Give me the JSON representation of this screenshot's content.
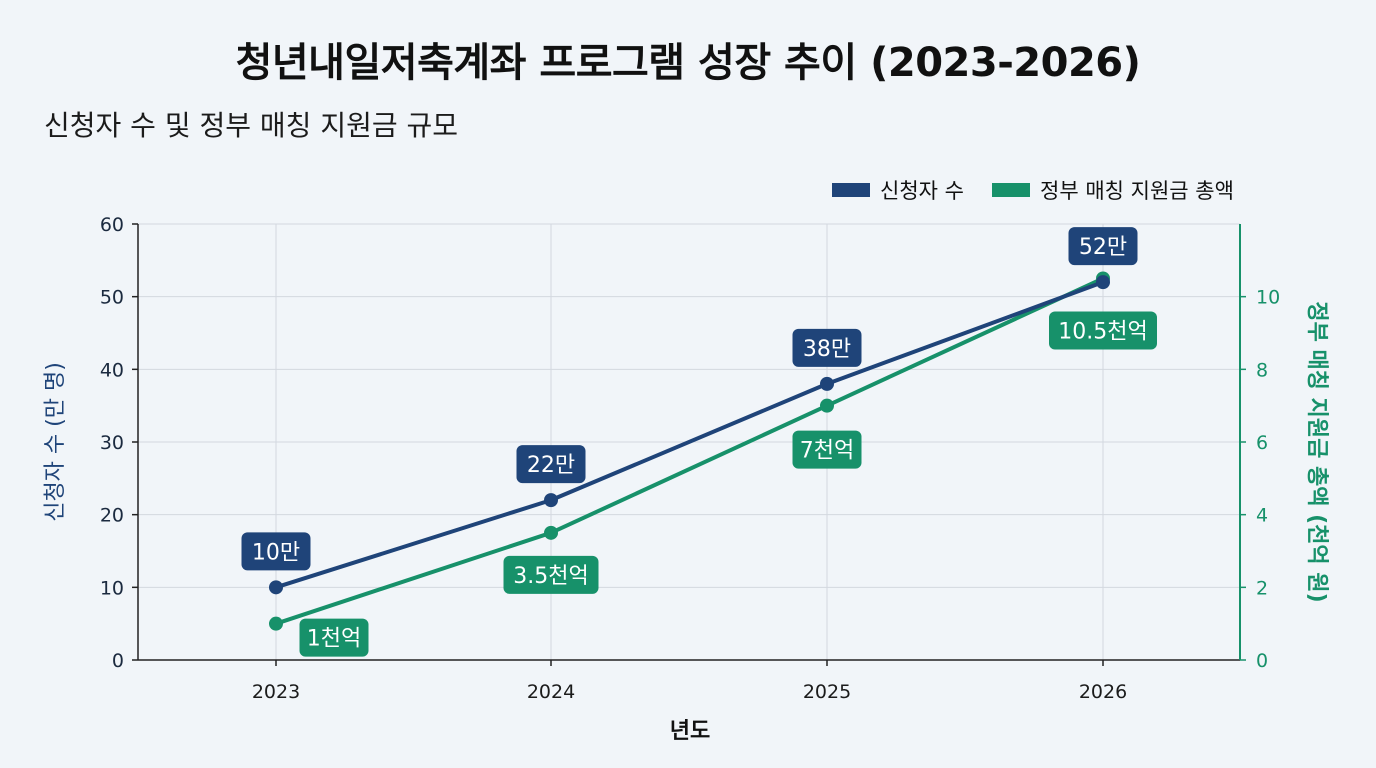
{
  "title": "청년내일저축계좌 프로그램 성장 추이 (2023-2026)",
  "subtitle": "신청자 수 및 정부 매칭 지원금 규모",
  "chart_data": {
    "type": "line",
    "x": [
      "2023",
      "2024",
      "2025",
      "2026"
    ],
    "xlabel": "년도",
    "ylabel_left": "신청자 수 (만 명)",
    "ylabel_right": "정부 매칭 지원금 총액 (천억 원)",
    "ylim_left": [
      0,
      60
    ],
    "yticks_left": [
      "0",
      "10",
      "20",
      "30",
      "40",
      "50",
      "60"
    ],
    "ylim_right": [
      0,
      12
    ],
    "yticks_right": [
      "0",
      "2",
      "4",
      "6",
      "8",
      "10"
    ],
    "grid": true,
    "legend_position": "top-right",
    "series": [
      {
        "name": "신청자 수",
        "axis": "left",
        "color": "#1f4479",
        "values": [
          10,
          22,
          38,
          52
        ],
        "labels": [
          "10만",
          "22만",
          "38만",
          "52만"
        ]
      },
      {
        "name": "정부 매칭 지원금 총액",
        "axis": "right",
        "color": "#17916a",
        "values": [
          1,
          3.5,
          7,
          10.5
        ],
        "labels": [
          "1천억",
          "3.5천억",
          "7천억",
          "10.5천억"
        ]
      }
    ]
  }
}
